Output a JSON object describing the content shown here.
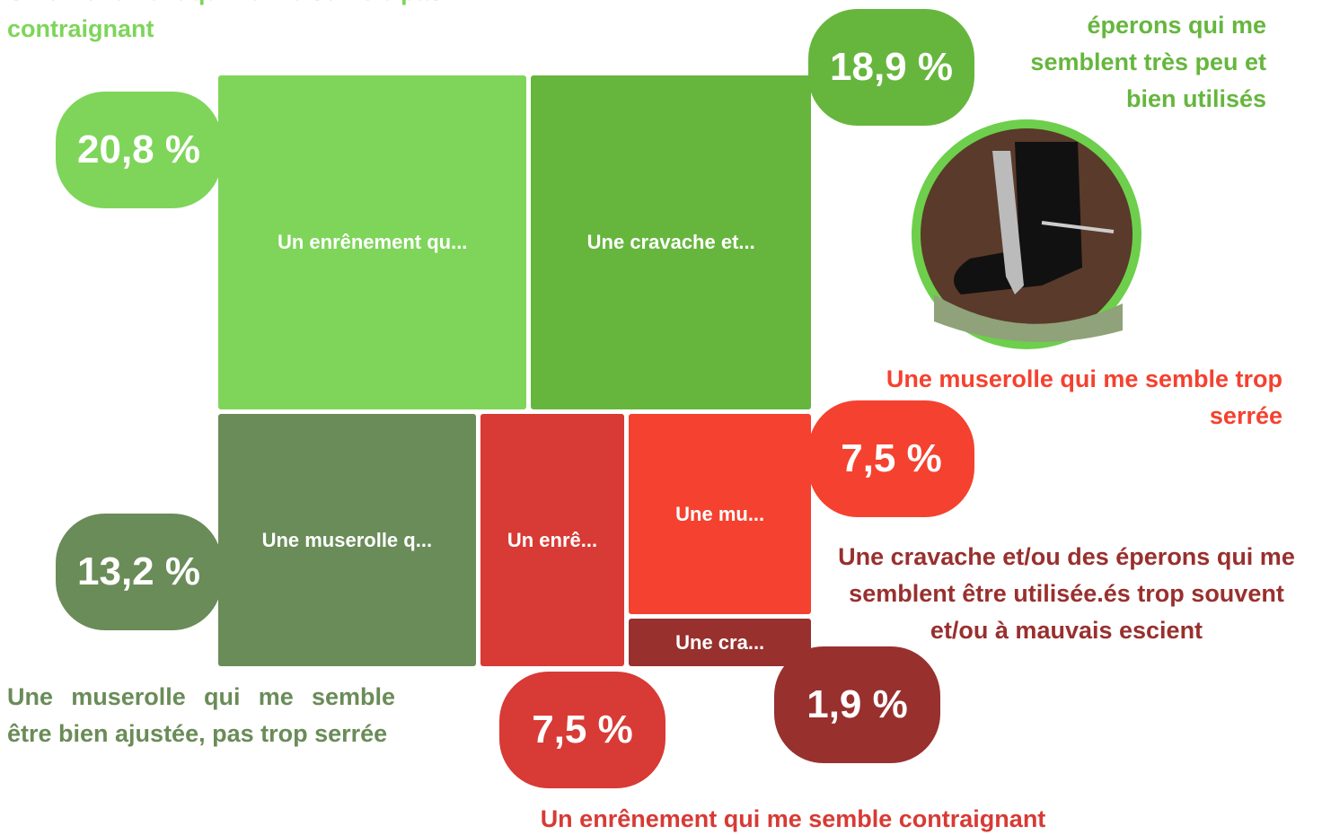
{
  "chart_data": {
    "type": "treemap",
    "categories": [
      "Un enrênement qu...",
      "Une cravache et...",
      "Une muserolle q...",
      "Un enrê...",
      "Une mu...",
      "Une cra..."
    ],
    "annotations": [
      "Un enrênement qui ne me semble pas contraignant",
      "Une cravache et/ou des éperons qui me semblent très peu et bien utilisés",
      "Une muserolle qui me semble être bien ajustée, pas trop serrée",
      "Un enrênement qui me semble contraignant",
      "Une muserolle qui me semble trop serrée",
      "Une cravache et/ou des éperons qui me semblent être utilisée.és trop souvent et/ou à mauvais escient"
    ],
    "values": [
      20.8,
      18.9,
      13.2,
      7.5,
      7.5,
      1.9
    ],
    "value_labels": [
      "20,8 %",
      "18,9 %",
      "13,2 %",
      "7,5 %",
      "7,5 %",
      "1,9 %"
    ],
    "colors": [
      "#7ed55a",
      "#66b63e",
      "#6a8c58",
      "#d83a35",
      "#f5412f",
      "#98302e"
    ]
  }
}
